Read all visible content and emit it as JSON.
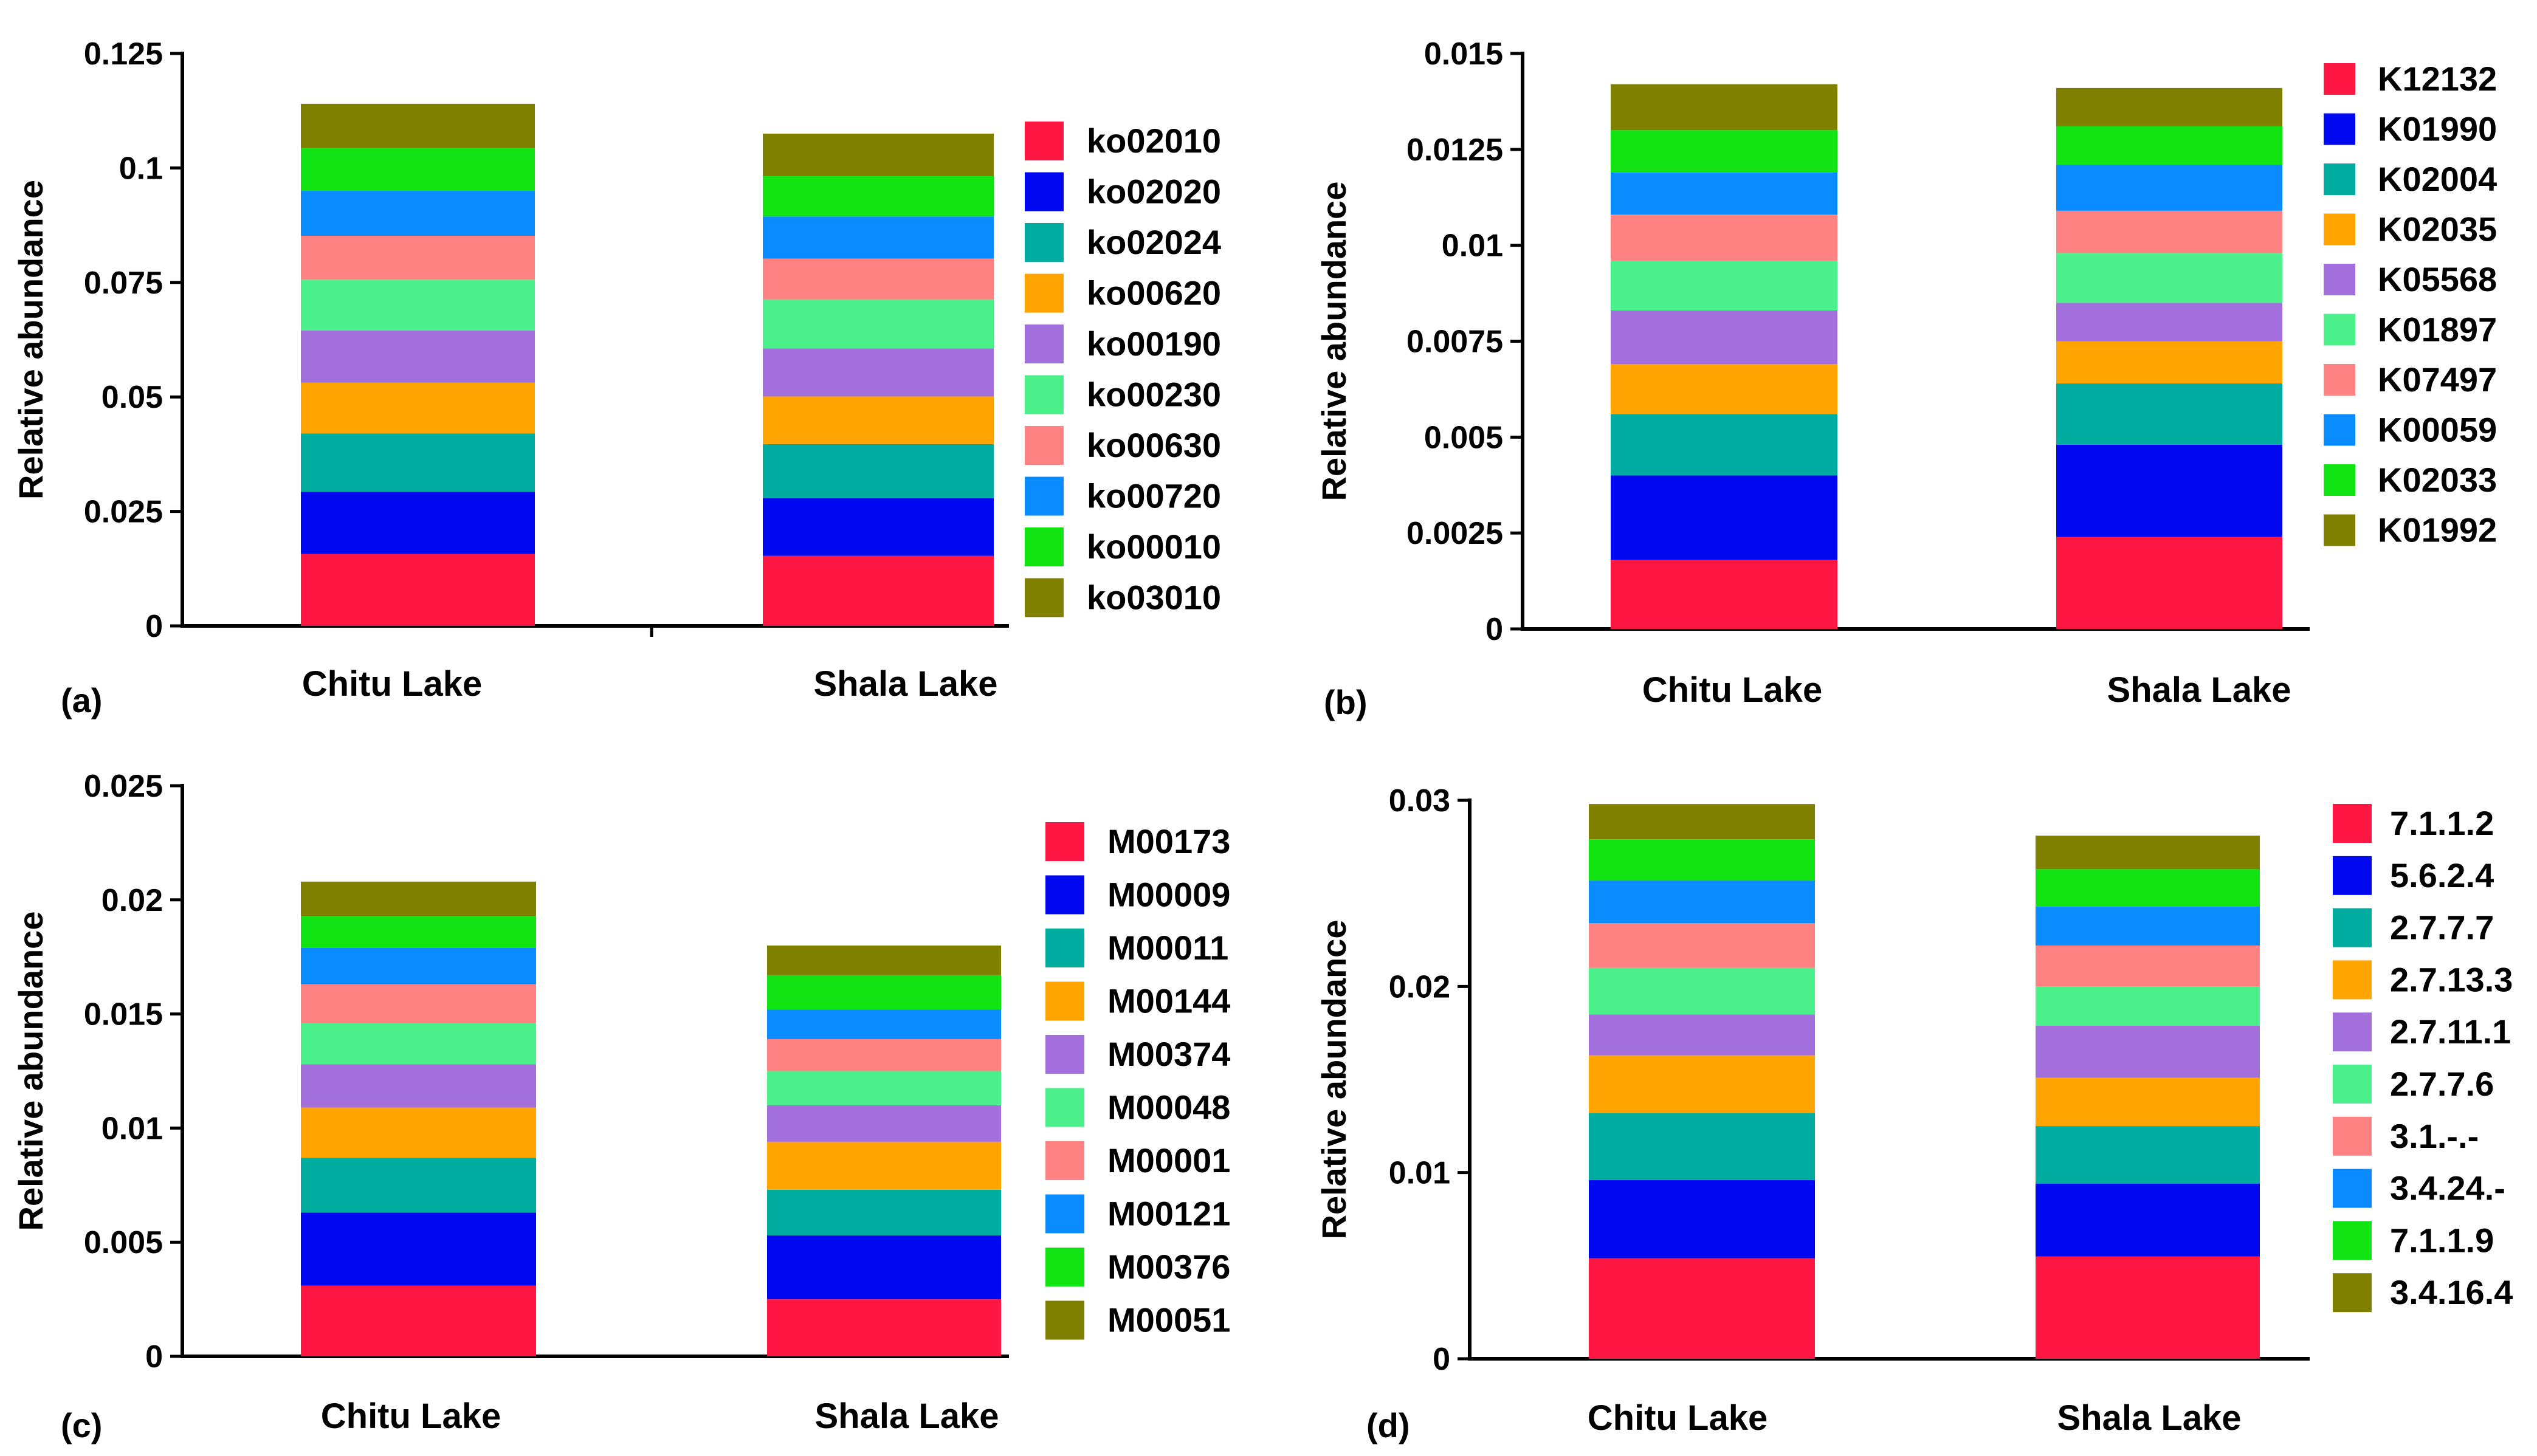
{
  "colors": [
    "#ff1744",
    "#0008f0",
    "#00aba0",
    "#ffa400",
    "#a36fdd",
    "#4cf08b",
    "#ff8282",
    "#0a8cff",
    "#12e312",
    "#808000"
  ],
  "chart_data": [
    {
      "panel_label": "(a)",
      "type": "bar",
      "stacked": true,
      "ylabel": "Relative abundance",
      "ylim": [
        0,
        0.125
      ],
      "yticks": [
        "0",
        "0.025",
        "0.05",
        "0.075",
        "0.1",
        "0.125"
      ],
      "ytick_values": [
        0,
        0.025,
        0.05,
        0.075,
        0.1,
        0.125
      ],
      "categories": [
        "Chitu Lake",
        "Shala Lake"
      ],
      "legend_position": "right",
      "series": [
        {
          "name": "ko02010",
          "values": [
            0.0157,
            0.0153
          ]
        },
        {
          "name": "ko02020",
          "values": [
            0.0136,
            0.0126
          ]
        },
        {
          "name": "ko02024",
          "values": [
            0.0127,
            0.0118
          ]
        },
        {
          "name": "ko00620",
          "values": [
            0.0111,
            0.0104
          ]
        },
        {
          "name": "ko00190",
          "values": [
            0.0114,
            0.0105
          ]
        },
        {
          "name": "ko00230",
          "values": [
            0.0111,
            0.0107
          ]
        },
        {
          "name": "ko00630",
          "values": [
            0.0096,
            0.0089
          ]
        },
        {
          "name": "ko00720",
          "values": [
            0.0098,
            0.0092
          ]
        },
        {
          "name": "ko00010",
          "values": [
            0.0093,
            0.0088
          ]
        },
        {
          "name": "ko03010",
          "values": [
            0.0097,
            0.0093
          ]
        }
      ]
    },
    {
      "panel_label": "(b)",
      "type": "bar",
      "stacked": true,
      "ylabel": "Relative abundance",
      "ylim": [
        0,
        0.015
      ],
      "yticks": [
        "0",
        "0.0025",
        "0.005",
        "0.0075",
        "0.01",
        "0.0125",
        "0.015"
      ],
      "ytick_values": [
        0,
        0.0025,
        0.005,
        0.0075,
        0.01,
        0.0125,
        0.015
      ],
      "categories": [
        "Chitu Lake",
        "Shala Lake"
      ],
      "legend_position": "right",
      "series": [
        {
          "name": "K12132",
          "values": [
            0.0018,
            0.0024
          ]
        },
        {
          "name": "K01990",
          "values": [
            0.0022,
            0.0024
          ]
        },
        {
          "name": "K02004",
          "values": [
            0.0016,
            0.0016
          ]
        },
        {
          "name": "K02035",
          "values": [
            0.0013,
            0.0011
          ]
        },
        {
          "name": "K05568",
          "values": [
            0.0014,
            0.001
          ]
        },
        {
          "name": "K01897",
          "values": [
            0.0013,
            0.0013
          ]
        },
        {
          "name": "K07497",
          "values": [
            0.0012,
            0.0011
          ]
        },
        {
          "name": "K00059",
          "values": [
            0.0011,
            0.0012
          ]
        },
        {
          "name": "K02033",
          "values": [
            0.0011,
            0.001
          ]
        },
        {
          "name": "K01992",
          "values": [
            0.0012,
            0.001
          ]
        }
      ]
    },
    {
      "panel_label": "(c)",
      "type": "bar",
      "stacked": true,
      "ylabel": "Relative abundance",
      "ylim": [
        0,
        0.025
      ],
      "yticks": [
        "0",
        "0.005",
        "0.01",
        "0.015",
        "0.02",
        "0.025"
      ],
      "ytick_values": [
        0,
        0.005,
        0.01,
        0.015,
        0.02,
        0.025
      ],
      "categories": [
        "Chitu Lake",
        "Shala Lake"
      ],
      "legend_position": "right",
      "series": [
        {
          "name": "M00173",
          "values": [
            0.0031,
            0.0025
          ]
        },
        {
          "name": "M00009",
          "values": [
            0.0032,
            0.0028
          ]
        },
        {
          "name": "M00011",
          "values": [
            0.0024,
            0.002
          ]
        },
        {
          "name": "M00144",
          "values": [
            0.0022,
            0.0021
          ]
        },
        {
          "name": "M00374",
          "values": [
            0.0019,
            0.0016
          ]
        },
        {
          "name": "M00048",
          "values": [
            0.0018,
            0.0015
          ]
        },
        {
          "name": "M00001",
          "values": [
            0.0017,
            0.0014
          ]
        },
        {
          "name": "M00121",
          "values": [
            0.0016,
            0.0013
          ]
        },
        {
          "name": "M00376",
          "values": [
            0.0014,
            0.0015
          ]
        },
        {
          "name": "M00051",
          "values": [
            0.0015,
            0.0013
          ]
        }
      ]
    },
    {
      "panel_label": "(d)",
      "type": "bar",
      "stacked": true,
      "ylabel": "Relative abundance",
      "ylim": [
        0,
        0.03
      ],
      "yticks": [
        "0",
        "0.01",
        "0.02",
        "0.03"
      ],
      "ytick_values": [
        0,
        0.01,
        0.02,
        0.03
      ],
      "categories": [
        "Chitu Lake",
        "Shala Lake"
      ],
      "legend_position": "right",
      "series": [
        {
          "name": "7.1.1.2",
          "values": [
            0.0054,
            0.0055
          ]
        },
        {
          "name": "5.6.2.4",
          "values": [
            0.0042,
            0.0039
          ]
        },
        {
          "name": "2.7.7.7",
          "values": [
            0.0036,
            0.0031
          ]
        },
        {
          "name": "2.7.13.3",
          "values": [
            0.0031,
            0.0026
          ]
        },
        {
          "name": "2.7.11.1",
          "values": [
            0.0022,
            0.0028
          ]
        },
        {
          "name": "2.7.7.6",
          "values": [
            0.0025,
            0.0021
          ]
        },
        {
          "name": "3.1.-.-",
          "values": [
            0.0024,
            0.0022
          ]
        },
        {
          "name": "3.4.24.-",
          "values": [
            0.0023,
            0.0021
          ]
        },
        {
          "name": "7.1.1.9",
          "values": [
            0.0022,
            0.002
          ]
        },
        {
          "name": "3.4.16.4",
          "values": [
            0.0019,
            0.0018
          ]
        }
      ]
    }
  ]
}
